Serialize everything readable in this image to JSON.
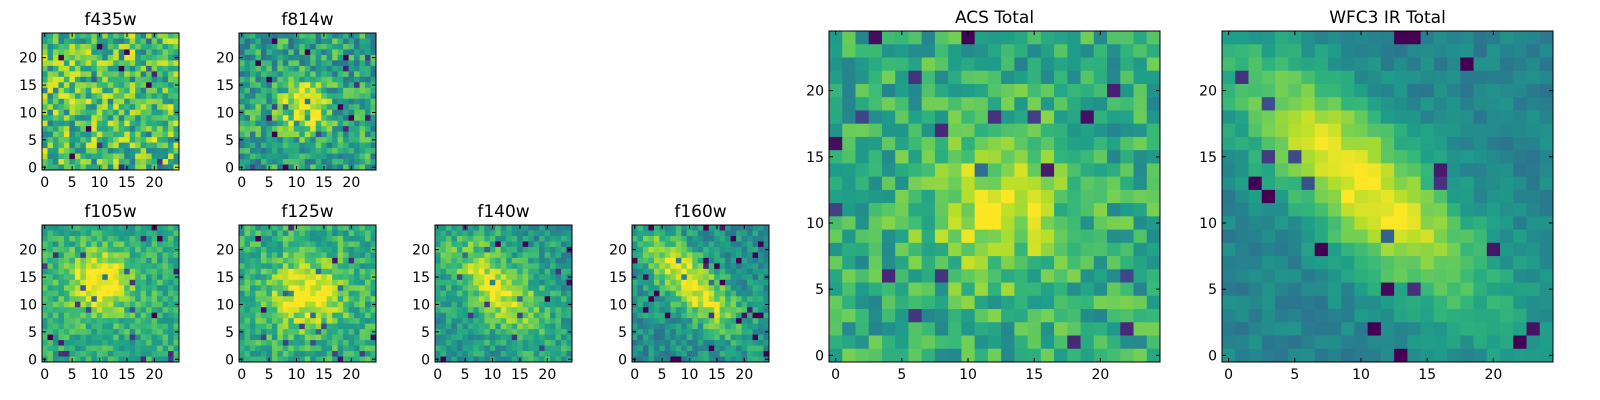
{
  "colormap": {
    "name": "viridis",
    "stops": [
      "#440154",
      "#482878",
      "#3e4a89",
      "#31688e",
      "#26828e",
      "#1f9e89",
      "#35b779",
      "#6ece58",
      "#b5de2b",
      "#fde725"
    ]
  },
  "chart_data": [
    {
      "type": "heatmap",
      "title": "f435w",
      "xticks": [
        "0",
        "5",
        "10",
        "15",
        "20"
      ],
      "yticks": [
        "0",
        "5",
        "10",
        "15",
        "20"
      ],
      "xlim": [
        -0.5,
        24.5
      ],
      "ylim": [
        -0.5,
        24.5
      ],
      "grid": false,
      "source_note": "pixel image, noisy"
    },
    {
      "type": "heatmap",
      "title": "f814w",
      "xticks": [
        "0",
        "5",
        "10",
        "15",
        "20"
      ],
      "yticks": [
        "0",
        "5",
        "10",
        "15",
        "20"
      ],
      "xlim": [
        -0.5,
        24.5
      ],
      "ylim": [
        -0.5,
        24.5
      ],
      "grid": false,
      "source_note": "pixel image, faint central source"
    },
    {
      "type": "heatmap",
      "title": "f105w",
      "xticks": [
        "0",
        "5",
        "10",
        "15",
        "20"
      ],
      "yticks": [
        "0",
        "5",
        "10",
        "15",
        "20"
      ],
      "xlim": [
        -0.5,
        24.5
      ],
      "ylim": [
        -0.5,
        24.5
      ],
      "grid": false,
      "source_note": "pixel image, central source"
    },
    {
      "type": "heatmap",
      "title": "f125w",
      "xticks": [
        "0",
        "5",
        "10",
        "15",
        "20"
      ],
      "yticks": [
        "0",
        "5",
        "10",
        "15",
        "20"
      ],
      "xlim": [
        -0.5,
        24.5
      ],
      "ylim": [
        -0.5,
        24.5
      ],
      "grid": false,
      "source_note": "pixel image, central source"
    },
    {
      "type": "heatmap",
      "title": "f140w",
      "xticks": [
        "0",
        "5",
        "10",
        "15",
        "20"
      ],
      "yticks": [
        "0",
        "5",
        "10",
        "15",
        "20"
      ],
      "xlim": [
        -0.5,
        24.5
      ],
      "ylim": [
        -0.5,
        24.5
      ],
      "grid": false,
      "source_note": "pixel image, elongated source"
    },
    {
      "type": "heatmap",
      "title": "f160w",
      "xticks": [
        "0",
        "5",
        "10",
        "15",
        "20"
      ],
      "yticks": [
        "0",
        "5",
        "10",
        "15",
        "20"
      ],
      "xlim": [
        -0.5,
        24.5
      ],
      "ylim": [
        -0.5,
        24.5
      ],
      "grid": false,
      "source_note": "pixel image, elongated diagonal source"
    },
    {
      "type": "heatmap",
      "title": "ACS Total",
      "xticks": [
        "0",
        "5",
        "10",
        "15",
        "20"
      ],
      "yticks": [
        "0",
        "5",
        "10",
        "15",
        "20"
      ],
      "xlim": [
        -0.5,
        24.5
      ],
      "ylim": [
        -0.5,
        24.5
      ],
      "grid": false,
      "source_note": "pixel image, central source with noise"
    },
    {
      "type": "heatmap",
      "title": "WFC3 IR Total",
      "xticks": [
        "0",
        "5",
        "10",
        "15",
        "20"
      ],
      "yticks": [
        "0",
        "5",
        "10",
        "15",
        "20"
      ],
      "xlim": [
        -0.5,
        24.5
      ],
      "ylim": [
        -0.5,
        24.5
      ],
      "grid": false,
      "source_note": "pixel image, elongated diagonal source"
    }
  ]
}
